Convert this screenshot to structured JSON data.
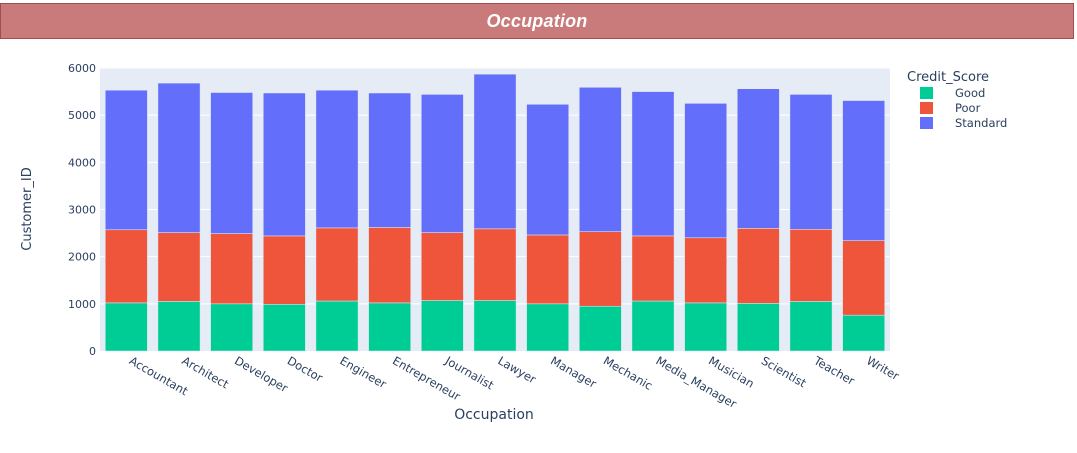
{
  "header": {
    "title": "Occupation"
  },
  "chart_data": {
    "type": "bar",
    "stacked": true,
    "xlabel": "Occupation",
    "ylabel": "Customer_ID",
    "ylim": [
      0,
      6000
    ],
    "yticks": [
      0,
      1000,
      2000,
      3000,
      4000,
      5000,
      6000
    ],
    "grid": true,
    "legend_title": "Credit_Score",
    "legend_position": "top-right",
    "categories": [
      "Accountant",
      "Architect",
      "Developer",
      "Doctor",
      "Engineer",
      "Entrepreneur",
      "Journalist",
      "Lawyer",
      "Manager",
      "Mechanic",
      "Media_Manager",
      "Musician",
      "Scientist",
      "Teacher",
      "Writer"
    ],
    "series": [
      {
        "name": "Good",
        "color": "#00cc96",
        "values": [
          1020,
          1050,
          1000,
          990,
          1060,
          1020,
          1070,
          1070,
          1000,
          950,
          1060,
          1020,
          1010,
          1050,
          760
        ]
      },
      {
        "name": "Poor",
        "color": "#ef553b",
        "values": [
          1550,
          1460,
          1490,
          1450,
          1550,
          1600,
          1440,
          1520,
          1460,
          1580,
          1380,
          1380,
          1590,
          1530,
          1580
        ]
      },
      {
        "name": "Standard",
        "color": "#636efa",
        "values": [
          2960,
          3170,
          2990,
          3030,
          2920,
          2850,
          2930,
          3280,
          2770,
          3060,
          3060,
          2850,
          2960,
          2860,
          2970
        ]
      }
    ]
  }
}
